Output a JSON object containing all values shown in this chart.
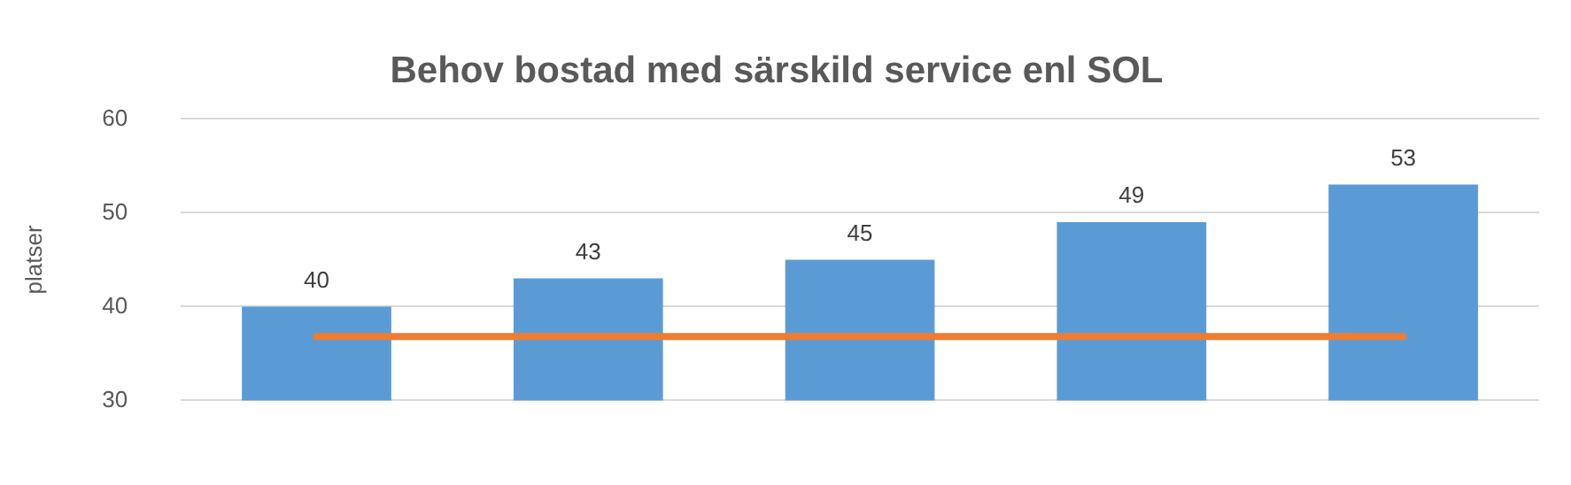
{
  "chart_data": {
    "type": "bar",
    "title": "Behov bostad med särskild service enl SOL",
    "ylabel": "platser",
    "categories": [
      null,
      null,
      null,
      null,
      null
    ],
    "series": [
      {
        "color": "#5b9bd5",
        "values": [
          40,
          43,
          45,
          49,
          53
        ],
        "value_labels": [
          "40",
          "43",
          "45",
          "49",
          "53"
        ]
      },
      {
        "type": "line",
        "color": "#ed7d31",
        "values": [
          36.8,
          36.8,
          36.8,
          36.8,
          36.8
        ]
      }
    ],
    "ylim": [
      30,
      60
    ],
    "yticks": [
      30,
      40,
      50,
      60
    ],
    "grid": "y",
    "legend": false,
    "marker": "none"
  }
}
